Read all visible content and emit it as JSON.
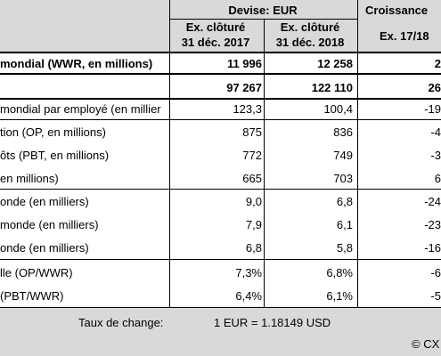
{
  "header": {
    "currency_group": "Devise: EUR",
    "growth_group": "Croissance",
    "col_2017_line1": "Ex. clôturé",
    "col_2017_line2": "31 déc. 2017",
    "col_2018_line1": "Ex. clôturé",
    "col_2018_line2": "31 déc. 2018",
    "col_growth": "Ex. 17/18"
  },
  "rows": [
    {
      "label": "mondial (WWR, en millions)",
      "v2017": "11 996",
      "v2018": "12 258",
      "growth": "2",
      "bold": true
    },
    {
      "label": "",
      "v2017": "97 267",
      "v2018": "122 110",
      "growth": "26",
      "bold": true
    },
    {
      "label": "mondial par employé (en millier",
      "v2017": "123,3",
      "v2018": "100,4",
      "growth": "-19"
    },
    {
      "label": "tion (OP, en millions)",
      "v2017": "875",
      "v2018": "836",
      "growth": "-4"
    },
    {
      "label": "ôts (PBT, en millions)",
      "v2017": "772",
      "v2018": "749",
      "growth": "-3"
    },
    {
      "label": "en millions)",
      "v2017": "665",
      "v2018": "703",
      "growth": "6"
    },
    {
      "label": "onde (en milliers)",
      "v2017": "9,0",
      "v2018": "6,8",
      "growth": "-24"
    },
    {
      "label": "monde (en milliers)",
      "v2017": "7,9",
      "v2018": "6,1",
      "growth": "-23"
    },
    {
      "label": "onde (en milliers)",
      "v2017": "6,8",
      "v2018": "5,8",
      "growth": "-16"
    },
    {
      "label": "lle (OP/WWR)",
      "v2017": "7,3%",
      "v2018": "6,8%",
      "growth": "-6"
    },
    {
      "label": " (PBT/WWR)",
      "v2017": "6,4%",
      "v2018": "6,1%",
      "growth": "-5"
    }
  ],
  "footer": {
    "exchange_label": "Taux de change:",
    "exchange_value": "1 EUR =  1.18149 USD",
    "copyright": "© CX"
  }
}
